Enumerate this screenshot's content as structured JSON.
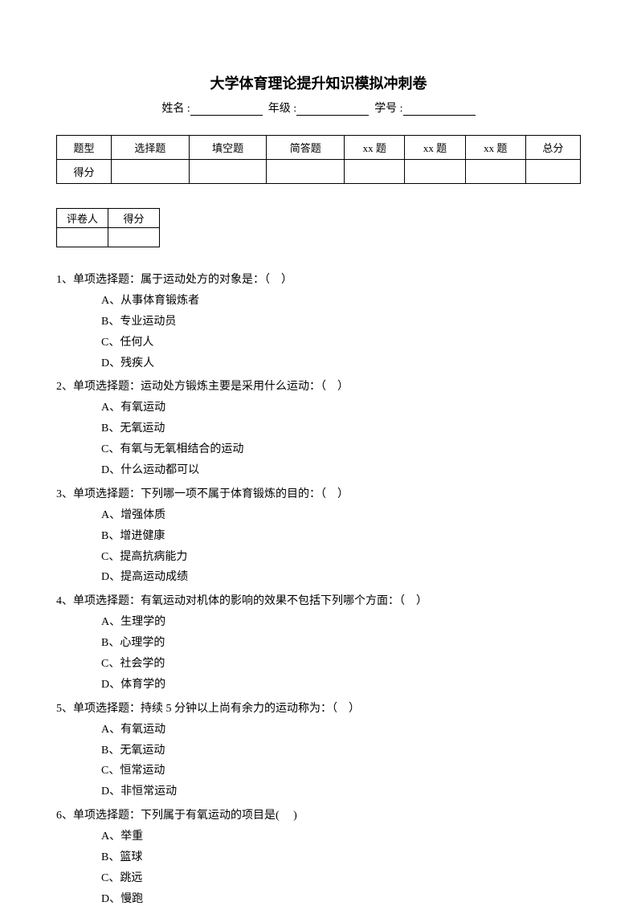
{
  "title": "大学体育理论提升知识模拟冲刺卷",
  "info": {
    "name_label": "姓名 :",
    "grade_label": "年级 :",
    "id_label": "学号 :"
  },
  "score_table": {
    "headers": [
      "题型",
      "选择题",
      "填空题",
      "简答题",
      "xx 题",
      "xx 题",
      "xx 题",
      "总分"
    ],
    "row2_first": "得分"
  },
  "small_table": {
    "h1": "评卷人",
    "h2": "得分"
  },
  "questions": [
    {
      "num": "1、",
      "stem": "单项选择题：属于运动处方的对象是：（　）",
      "options": [
        "A、从事体育锻炼者",
        "B、专业运动员",
        "C、任何人",
        "D、残疾人"
      ]
    },
    {
      "num": "2、",
      "stem": "单项选择题：运动处方锻炼主要是采用什么运动：（　）",
      "options": [
        "A、有氧运动",
        "B、无氧运动",
        "C、有氧与无氧相结合的运动",
        "D、什么运动都可以"
      ]
    },
    {
      "num": "3、",
      "stem": "单项选择题：下列哪一项不属于体育锻炼的目的：（　）",
      "options": [
        "A、增强体质",
        "B、增进健康",
        "C、提高抗病能力",
        "D、提高运动成绩"
      ]
    },
    {
      "num": "4、",
      "stem": "单项选择题：有氧运动对机体的影响的效果不包括下列哪个方面：（　）",
      "options": [
        "A、生理学的",
        "B、心理学的",
        "C、社会学的",
        "D、体育学的"
      ]
    },
    {
      "num": "5、",
      "stem": "单项选择题：持续 5 分钟以上尚有余力的运动称为：（　）",
      "options": [
        "A、有氧运动",
        "B、无氧运动",
        "C、恒常运动",
        "D、非恒常运动"
      ]
    },
    {
      "num": "6、",
      "stem": "单项选择题：下列属于有氧运动的项目是(　 )",
      "options": [
        "A、举重",
        "B、篮球",
        "C、跳远",
        "D、慢跑"
      ]
    }
  ]
}
